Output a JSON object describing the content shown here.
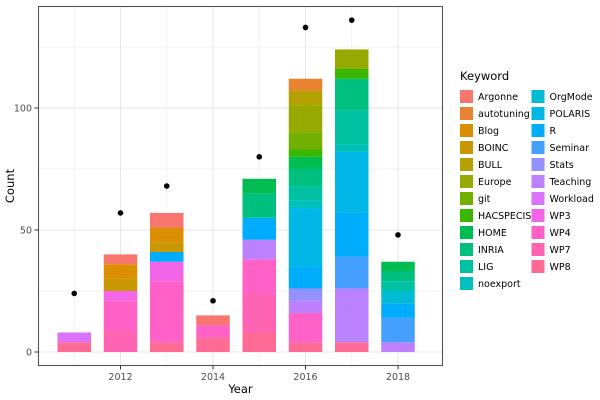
{
  "chart_data": {
    "type": "bar",
    "stacked": true,
    "title": "",
    "x_axis": {
      "label": "Year",
      "ticks": [
        2012,
        2014,
        2016,
        2018
      ],
      "minor_ticks": [
        2011,
        2013,
        2015,
        2017
      ],
      "range": [
        2010.2,
        2018.95
      ]
    },
    "y_axis": {
      "label": "Count",
      "ticks": [
        0,
        50,
        100
      ],
      "minor_ticks": [
        25,
        75,
        125
      ],
      "range": [
        -5,
        142
      ]
    },
    "legend": {
      "title": "Keyword",
      "position": "right",
      "columns": [
        [
          "Argonne",
          "autotuning",
          "Blog",
          "BOINC",
          "BULL",
          "Europe",
          "git",
          "HACSPECIS",
          "HOME",
          "INRIA",
          "LIG",
          "noexport"
        ],
        [
          "OrgMode",
          "POLARIS",
          "R",
          "Seminar",
          "Stats",
          "Teaching",
          "Workload",
          "WP3",
          "WP4",
          "WP7",
          "WP8"
        ]
      ]
    },
    "keywords": [
      {
        "name": "Argonne",
        "color": "#F8766D"
      },
      {
        "name": "autotuning",
        "color": "#EA8331"
      },
      {
        "name": "Blog",
        "color": "#DB8E00"
      },
      {
        "name": "BOINC",
        "color": "#C99800"
      },
      {
        "name": "BULL",
        "color": "#B2A100"
      },
      {
        "name": "Europe",
        "color": "#95A900"
      },
      {
        "name": "git",
        "color": "#72B000"
      },
      {
        "name": "HACSPECIS",
        "color": "#39B600"
      },
      {
        "name": "HOME",
        "color": "#00BC51"
      },
      {
        "name": "INRIA",
        "color": "#00C07F"
      },
      {
        "name": "LIG",
        "color": "#00C1A2"
      },
      {
        "name": "noexport",
        "color": "#00C0BE"
      },
      {
        "name": "OrgMode",
        "color": "#00BDD4"
      },
      {
        "name": "POLARIS",
        "color": "#00B7E8"
      },
      {
        "name": "R",
        "color": "#00ACFC"
      },
      {
        "name": "Seminar",
        "color": "#459FFF"
      },
      {
        "name": "Stats",
        "color": "#9590FF"
      },
      {
        "name": "Teaching",
        "color": "#BC81FF"
      },
      {
        "name": "Workload",
        "color": "#DB72FA"
      },
      {
        "name": "WP3",
        "color": "#F265E6"
      },
      {
        "name": "WP4",
        "color": "#FF61C7"
      },
      {
        "name": "WP7",
        "color": "#FF64B3"
      },
      {
        "name": "WP8",
        "color": "#FF6B94"
      }
    ],
    "bars": [
      {
        "year": 2011,
        "total": 8,
        "segments": [
          {
            "keyword": "WP8",
            "value": 4
          },
          {
            "keyword": "Workload",
            "value": 4
          }
        ]
      },
      {
        "year": 2012,
        "total": 40,
        "segments": [
          {
            "keyword": "WP7",
            "value": 9
          },
          {
            "keyword": "WP4",
            "value": 12
          },
          {
            "keyword": "WP3",
            "value": 4
          },
          {
            "keyword": "BOINC",
            "value": 5
          },
          {
            "keyword": "Blog",
            "value": 6
          },
          {
            "keyword": "Argonne",
            "value": 4
          }
        ]
      },
      {
        "year": 2013,
        "total": 57,
        "segments": [
          {
            "keyword": "WP8",
            "value": 4
          },
          {
            "keyword": "WP4",
            "value": 25
          },
          {
            "keyword": "WP3",
            "value": 8
          },
          {
            "keyword": "R",
            "value": 4
          },
          {
            "keyword": "BOINC",
            "value": 4
          },
          {
            "keyword": "Blog",
            "value": 6
          },
          {
            "keyword": "Argonne",
            "value": 6
          }
        ]
      },
      {
        "year": 2014,
        "total": 15,
        "segments": [
          {
            "keyword": "WP8",
            "value": 6
          },
          {
            "keyword": "WP4",
            "value": 5
          },
          {
            "keyword": "Argonne",
            "value": 4
          }
        ]
      },
      {
        "year": 2015,
        "total": 71,
        "segments": [
          {
            "keyword": "WP8",
            "value": 8
          },
          {
            "keyword": "WP7",
            "value": 16
          },
          {
            "keyword": "WP4",
            "value": 14
          },
          {
            "keyword": "Teaching",
            "value": 8
          },
          {
            "keyword": "R",
            "value": 9
          },
          {
            "keyword": "INRIA",
            "value": 10
          },
          {
            "keyword": "HOME",
            "value": 6
          }
        ]
      },
      {
        "year": 2016,
        "total": 112,
        "segments": [
          {
            "keyword": "WP8",
            "value": 4
          },
          {
            "keyword": "WP4",
            "value": 12
          },
          {
            "keyword": "Teaching",
            "value": 5
          },
          {
            "keyword": "Stats",
            "value": 5
          },
          {
            "keyword": "R",
            "value": 9
          },
          {
            "keyword": "POLARIS",
            "value": 24
          },
          {
            "keyword": "noexport",
            "value": 3
          },
          {
            "keyword": "LIG",
            "value": 6
          },
          {
            "keyword": "INRIA",
            "value": 7
          },
          {
            "keyword": "HOME",
            "value": 5
          },
          {
            "keyword": "HACSPECIS",
            "value": 3
          },
          {
            "keyword": "git",
            "value": 7
          },
          {
            "keyword": "Europe",
            "value": 11
          },
          {
            "keyword": "BULL",
            "value": 6
          },
          {
            "keyword": "autotuning",
            "value": 5
          }
        ]
      },
      {
        "year": 2017,
        "total": 124,
        "segments": [
          {
            "keyword": "WP8",
            "value": 4
          },
          {
            "keyword": "Teaching",
            "value": 22
          },
          {
            "keyword": "Seminar",
            "value": 13
          },
          {
            "keyword": "R",
            "value": 18
          },
          {
            "keyword": "POLARIS",
            "value": 25
          },
          {
            "keyword": "noexport",
            "value": 3
          },
          {
            "keyword": "LIG",
            "value": 14
          },
          {
            "keyword": "INRIA",
            "value": 13
          },
          {
            "keyword": "HACSPECIS",
            "value": 4
          },
          {
            "keyword": "Europe",
            "value": 8
          }
        ]
      },
      {
        "year": 2018,
        "total": 37,
        "segments": [
          {
            "keyword": "Teaching",
            "value": 4
          },
          {
            "keyword": "Seminar",
            "value": 10
          },
          {
            "keyword": "R",
            "value": 6
          },
          {
            "keyword": "OrgMode",
            "value": 5
          },
          {
            "keyword": "LIG",
            "value": 4
          },
          {
            "keyword": "INRIA",
            "value": 4
          },
          {
            "keyword": "HOME",
            "value": 4
          }
        ]
      }
    ],
    "points": [
      {
        "year": 2011,
        "value": 24
      },
      {
        "year": 2012,
        "value": 57
      },
      {
        "year": 2013,
        "value": 68
      },
      {
        "year": 2014,
        "value": 21
      },
      {
        "year": 2015,
        "value": 80
      },
      {
        "year": 2016,
        "value": 133
      },
      {
        "year": 2017,
        "value": 136
      },
      {
        "year": 2018,
        "value": 48
      }
    ],
    "style": {
      "panel_bg": "#FFFFFF",
      "panel_border": "#555555",
      "grid_major": "#E6E6E6",
      "grid_minor": "#F2F2F2",
      "tick_label_color": "#4D4D4D",
      "point_color": "#000000"
    }
  }
}
